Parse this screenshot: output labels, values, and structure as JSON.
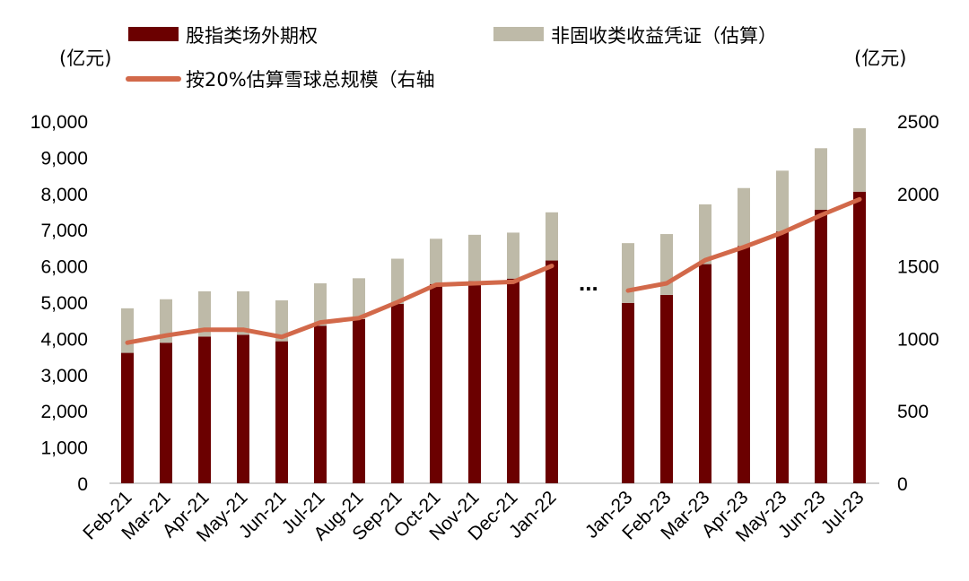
{
  "chart_data": {
    "type": "bar",
    "stacked": true,
    "categories": [
      "Feb-21",
      "Mar-21",
      "Apr-21",
      "May-21",
      "Jun-21",
      "Jul-21",
      "Aug-21",
      "Sep-21",
      "Oct-21",
      "Nov-21",
      "Dec-21",
      "Jan-22",
      "Jan-23",
      "Feb-23",
      "Mar-23",
      "Apr-23",
      "May-23",
      "Jun-23",
      "Jul-23"
    ],
    "series": [
      {
        "name": "股指类场外期权",
        "kind": "bar",
        "axis": "left",
        "color": "#6b0000",
        "values": [
          3600,
          3880,
          4050,
          4100,
          3920,
          4350,
          4530,
          4950,
          5500,
          5580,
          5650,
          6150,
          4980,
          5200,
          6050,
          6550,
          6950,
          7550,
          8050
        ]
      },
      {
        "name": "非固收类收益凭证（估算）",
        "kind": "bar",
        "axis": "left",
        "color": "#bebaa8",
        "values": [
          1230,
          1200,
          1250,
          1200,
          1130,
          1170,
          1130,
          1250,
          1250,
          1280,
          1270,
          1330,
          1650,
          1680,
          1650,
          1600,
          1680,
          1700,
          1750
        ]
      },
      {
        "name": "按20%估算雪球总规模（右轴",
        "kind": "line",
        "axis": "right",
        "color": "#d2694a",
        "values": [
          970,
          1020,
          1060,
          1060,
          1010,
          1110,
          1140,
          1250,
          1370,
          1380,
          1390,
          1500,
          1330,
          1380,
          1540,
          1630,
          1730,
          1850,
          1960
        ]
      }
    ],
    "left_axis": {
      "unit": "(亿元)",
      "ylim": [
        0,
        10000
      ],
      "ticks": [
        "0",
        "1,000",
        "2,000",
        "3,000",
        "4,000",
        "5,000",
        "6,000",
        "7,000",
        "8,000",
        "9,000",
        "10,000"
      ]
    },
    "right_axis": {
      "unit": "(亿元)",
      "ylim": [
        0,
        2500
      ],
      "ticks": [
        "0",
        "500",
        "1000",
        "1500",
        "2000",
        "2500"
      ]
    },
    "break_label": "...",
    "break_after_index": 11,
    "grid": false,
    "legend_position": "top"
  }
}
